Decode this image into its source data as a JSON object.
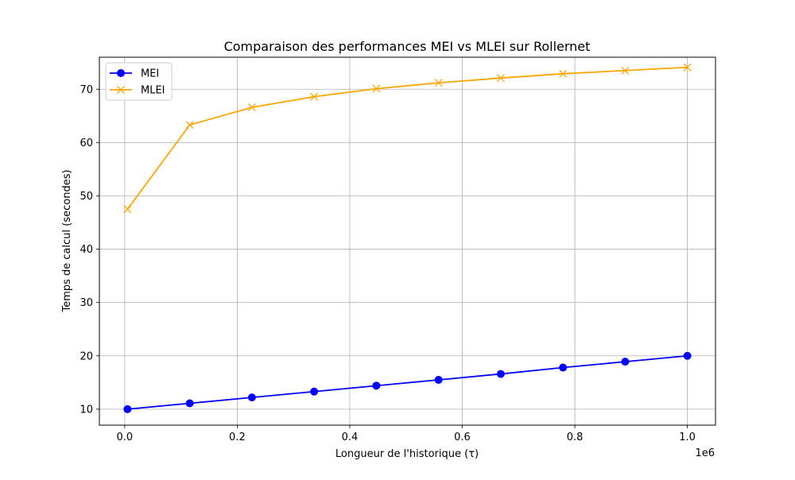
{
  "chart_data": {
    "type": "line",
    "title": "Comparaison des performances MEI vs MLEI sur Rollernet",
    "xlabel": "Longueur de l'historique (τ)",
    "ylabel": "Temps de calcul (secondes)",
    "x_offset_label": "1e6",
    "x_scale_factor": 1000000,
    "x": [
      5000,
      115556,
      226111,
      336667,
      447222,
      557778,
      668333,
      778889,
      889444,
      1000000
    ],
    "xlim": [
      -45000,
      1050000
    ],
    "ylim": [
      7.0,
      76.0
    ],
    "x_ticks": [
      0,
      200000,
      400000,
      600000,
      800000,
      1000000
    ],
    "x_tick_labels": [
      "0.0",
      "0.2",
      "0.4",
      "0.6",
      "0.8",
      "1.0"
    ],
    "y_ticks": [
      10,
      20,
      30,
      40,
      50,
      60,
      70
    ],
    "y_tick_labels": [
      "10",
      "20",
      "30",
      "40",
      "50",
      "60",
      "70"
    ],
    "grid": true,
    "legend_position": "top-left",
    "series": [
      {
        "name": "MEI",
        "color": "#0000ff",
        "marker": "circle",
        "values": [
          10.0,
          11.1,
          12.2,
          13.3,
          14.4,
          15.5,
          16.6,
          17.8,
          18.9,
          20.0
        ]
      },
      {
        "name": "MLEI",
        "color": "#ffa500",
        "marker": "x",
        "values": [
          47.5,
          63.3,
          66.6,
          68.6,
          70.1,
          71.2,
          72.1,
          72.9,
          73.5,
          74.1
        ]
      }
    ]
  }
}
